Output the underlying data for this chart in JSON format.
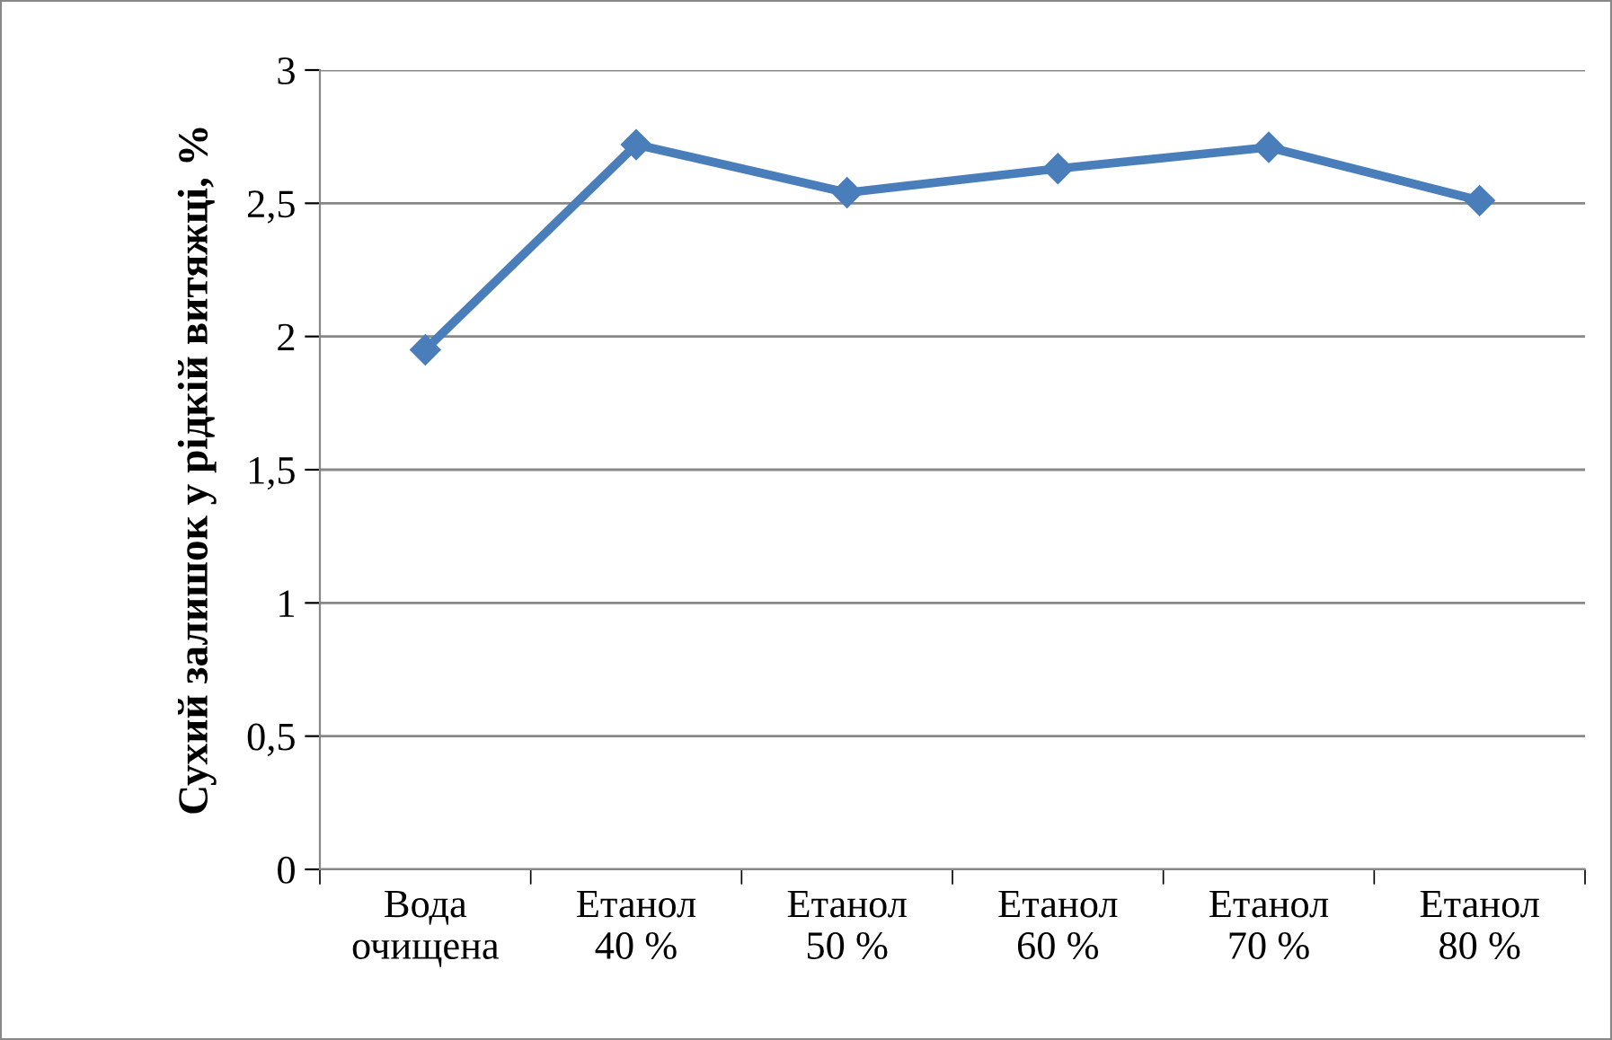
{
  "chart_data": {
    "type": "line",
    "ylabel": "Сухий залишок у рідкій витяжці, %",
    "categories": [
      "Вода\nочищена",
      "Етанол\n40 %",
      "Етанол\n50 %",
      "Етанол\n60 %",
      "Етанол\n70 %",
      "Етанол\n80 %"
    ],
    "series": [
      {
        "color": "#4a7ebb",
        "values": [
          1.95,
          2.72,
          2.54,
          2.63,
          2.71,
          2.51
        ]
      }
    ],
    "ylim": [
      0,
      3
    ],
    "yticks": [
      0,
      {
        "value": 0.5,
        "label": "0,5"
      },
      1,
      {
        "value": 1.5,
        "label": "1,5"
      },
      2,
      {
        "value": 2.5,
        "label": "2,5"
      },
      3
    ],
    "grid": "y",
    "legend": false,
    "marker": "diamond",
    "line_style": "solid"
  }
}
